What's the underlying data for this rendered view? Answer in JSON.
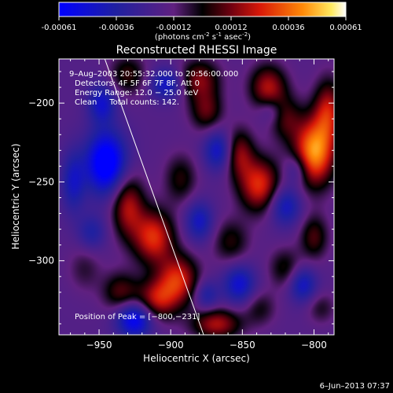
{
  "colorbar": {
    "ticks": [
      "-0.00061",
      "-0.00036",
      "-0.00012",
      "0.00012",
      "0.00036",
      "0.00061"
    ],
    "label": "(photons cm",
    "label_sup1": "-2",
    "label_mid": " s",
    "label_sup2": "-1",
    "label_end": " asec",
    "label_sup3": "-2",
    "label_close": ")"
  },
  "chart_data": {
    "type": "heatmap",
    "title": "Reconstructed RHESSI Image",
    "xlabel": "Heliocentric X (arcsec)",
    "ylabel": "Heliocentric Y (arcsec)",
    "xlim": [
      -978,
      -786
    ],
    "ylim": [
      -347,
      -172
    ],
    "xticks": [
      -950,
      -900,
      -850,
      -800
    ],
    "yticks": [
      -200,
      -250,
      -300
    ],
    "xtick_labels": [
      "−950",
      "−900",
      "−850",
      "−800"
    ],
    "ytick_labels": [
      "−200",
      "−250",
      "−300"
    ],
    "value_range": [
      -0.00061,
      0.00061
    ],
    "annotations": [
      "9–Aug–2003 20:55:32.000  to 20:56:00.000",
      "Detectors: 4F 5F 6F 7F 8F, Att 0",
      "Energy Range: 12.0 − 25.0 keV",
      "Clean     Total counts: 142."
    ],
    "peak_label": "Position of Peak = [−800,−231]",
    "peak": [
      -800,
      -231
    ],
    "limb_line": [
      [
        -946,
        -172
      ],
      [
        -877,
        -347
      ]
    ],
    "blobs": [
      {
        "x": -800,
        "y": -231,
        "sx": 10,
        "sy": 15,
        "v": 0.00061
      },
      {
        "x": -790,
        "y": -205,
        "sx": 7,
        "sy": 14,
        "v": 0.00036
      },
      {
        "x": -838,
        "y": -252,
        "sx": 10,
        "sy": 12,
        "v": 0.00044
      },
      {
        "x": -852,
        "y": -232,
        "sx": 7,
        "sy": 11,
        "v": 0.0003
      },
      {
        "x": -880,
        "y": -185,
        "sx": 10,
        "sy": 9,
        "v": 0.0003
      },
      {
        "x": -875,
        "y": -205,
        "sx": 8,
        "sy": 9,
        "v": 0.00026
      },
      {
        "x": -832,
        "y": -190,
        "sx": 9,
        "sy": 10,
        "v": 0.00036
      },
      {
        "x": -820,
        "y": -210,
        "sx": 8,
        "sy": 10,
        "v": 0.00022
      },
      {
        "x": -930,
        "y": -265,
        "sx": 8,
        "sy": 14,
        "v": 0.00036
      },
      {
        "x": -912,
        "y": -285,
        "sx": 10,
        "sy": 12,
        "v": 0.00044
      },
      {
        "x": -895,
        "y": -312,
        "sx": 10,
        "sy": 11,
        "v": 0.00042
      },
      {
        "x": -910,
        "y": -325,
        "sx": 10,
        "sy": 9,
        "v": 0.00036
      },
      {
        "x": -935,
        "y": -320,
        "sx": 9,
        "sy": 9,
        "v": 0.00025
      },
      {
        "x": -868,
        "y": -340,
        "sx": 12,
        "sy": 7,
        "v": 0.00036
      },
      {
        "x": -930,
        "y": -182,
        "sx": 9,
        "sy": 9,
        "v": 0.00022
      },
      {
        "x": -893,
        "y": -248,
        "sx": 8,
        "sy": 11,
        "v": 0.0002
      },
      {
        "x": -858,
        "y": -288,
        "sx": 9,
        "sy": 10,
        "v": 0.0002
      },
      {
        "x": -820,
        "y": -305,
        "sx": 8,
        "sy": 9,
        "v": 0.0002
      },
      {
        "x": -800,
        "y": -285,
        "sx": 7,
        "sy": 10,
        "v": 0.00024
      },
      {
        "x": -838,
        "y": -330,
        "sx": 8,
        "sy": 8,
        "v": 0.00016
      },
      {
        "x": -795,
        "y": -330,
        "sx": 7,
        "sy": 7,
        "v": 0.00014
      },
      {
        "x": -960,
        "y": -305,
        "sx": 8,
        "sy": 10,
        "v": 0.00012
      },
      {
        "x": -945,
        "y": -238,
        "sx": 10,
        "sy": 14,
        "v": -0.00055
      },
      {
        "x": -948,
        "y": -200,
        "sx": 7,
        "sy": 9,
        "v": -0.0003
      },
      {
        "x": -968,
        "y": -250,
        "sx": 6,
        "sy": 14,
        "v": -0.00026
      },
      {
        "x": -925,
        "y": -337,
        "sx": 9,
        "sy": 8,
        "v": -0.00045
      },
      {
        "x": -903,
        "y": -188,
        "sx": 8,
        "sy": 7,
        "v": -0.0003
      },
      {
        "x": -867,
        "y": -230,
        "sx": 7,
        "sy": 9,
        "v": -0.0003
      },
      {
        "x": -880,
        "y": -275,
        "sx": 7,
        "sy": 9,
        "v": -0.00028
      },
      {
        "x": -820,
        "y": -265,
        "sx": 8,
        "sy": 9,
        "v": -0.0003
      },
      {
        "x": -812,
        "y": -242,
        "sx": 6,
        "sy": 7,
        "v": -0.00022
      },
      {
        "x": -852,
        "y": -315,
        "sx": 8,
        "sy": 9,
        "v": -0.00032
      },
      {
        "x": -808,
        "y": -315,
        "sx": 7,
        "sy": 8,
        "v": -0.0003
      },
      {
        "x": -875,
        "y": -322,
        "sx": 6,
        "sy": 7,
        "v": -0.00022
      },
      {
        "x": -830,
        "y": -205,
        "sx": 6,
        "sy": 6,
        "v": -0.00016
      },
      {
        "x": -955,
        "y": -282,
        "sx": 7,
        "sy": 8,
        "v": -0.0002
      }
    ]
  },
  "footer": {
    "timestamp": "6–Jun–2013 07:37"
  }
}
